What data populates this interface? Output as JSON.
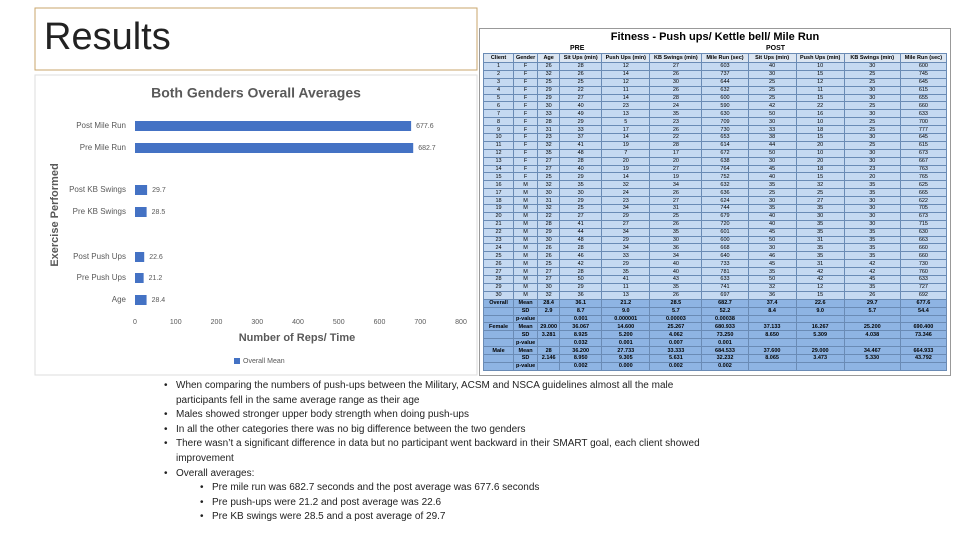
{
  "title": "Results",
  "chart_data": {
    "type": "hbar",
    "title": "Both Genders Overall Averages",
    "x_label": "Number of Reps/ Time",
    "y_label": "Exercise Performed",
    "categories": [
      "Post Mile Run",
      "Pre Mile Run",
      "Post KB Swings",
      "Pre KB Swings",
      "Post Push Ups",
      "Pre Push Ups",
      "Age"
    ],
    "series": [
      {
        "name": "Overall Mean",
        "color": "#4472c4",
        "values": [
          677.6,
          682.7,
          29.7,
          28.5,
          22.6,
          21.2,
          28.4
        ]
      }
    ],
    "xlim": [
      0,
      800
    ],
    "xticks": [
      0,
      100,
      200,
      300,
      400,
      500,
      600,
      700,
      800
    ],
    "grid": false,
    "legend": "bottom"
  },
  "table": {
    "title": "Fitness - Push ups/ Kettle bell/ Mile Run",
    "groups": [
      "PRE",
      "POST"
    ],
    "columns": [
      "Client",
      "Gender",
      "Age",
      "Sit Ups (min)",
      "Push Ups (min)",
      "KB Swings (min)",
      "Mile Run (sec)",
      "Sit Ups (min)",
      "Push Ups (min)",
      "KB Swings (min)",
      "Mile Run (sec)"
    ],
    "rows": [
      [
        "1",
        "F",
        "26",
        "28",
        "12",
        "27",
        "603",
        "40",
        "10",
        "30",
        "600"
      ],
      [
        "2",
        "F",
        "32",
        "26",
        "14",
        "26",
        "737",
        "30",
        "15",
        "25",
        "745"
      ],
      [
        "3",
        "F",
        "25",
        "25",
        "12",
        "30",
        "644",
        "25",
        "12",
        "25",
        "645"
      ],
      [
        "4",
        "F",
        "29",
        "22",
        "11",
        "26",
        "632",
        "25",
        "11",
        "30",
        "615"
      ],
      [
        "5",
        "F",
        "29",
        "27",
        "14",
        "28",
        "600",
        "25",
        "15",
        "30",
        "655"
      ],
      [
        "6",
        "F",
        "30",
        "40",
        "23",
        "24",
        "590",
        "42",
        "22",
        "25",
        "660"
      ],
      [
        "7",
        "F",
        "33",
        "49",
        "13",
        "35",
        "630",
        "50",
        "16",
        "30",
        "633"
      ],
      [
        "8",
        "F",
        "28",
        "29",
        "5",
        "23",
        "709",
        "30",
        "10",
        "25",
        "700"
      ],
      [
        "9",
        "F",
        "31",
        "33",
        "17",
        "26",
        "730",
        "33",
        "18",
        "25",
        "777"
      ],
      [
        "10",
        "F",
        "23",
        "37",
        "14",
        "22",
        "653",
        "38",
        "15",
        "30",
        "645"
      ],
      [
        "11",
        "F",
        "32",
        "41",
        "19",
        "28",
        "614",
        "44",
        "20",
        "25",
        "615"
      ],
      [
        "12",
        "F",
        "35",
        "48",
        "7",
        "17",
        "672",
        "50",
        "10",
        "30",
        "673"
      ],
      [
        "13",
        "F",
        "27",
        "28",
        "20",
        "20",
        "638",
        "30",
        "20",
        "30",
        "667"
      ],
      [
        "14",
        "F",
        "27",
        "40",
        "19",
        "27",
        "764",
        "45",
        "18",
        "23",
        "763"
      ],
      [
        "15",
        "F",
        "25",
        "29",
        "14",
        "19",
        "752",
        "40",
        "15",
        "20",
        "765"
      ],
      [
        "16",
        "M",
        "32",
        "35",
        "32",
        "34",
        "632",
        "35",
        "32",
        "35",
        "625"
      ],
      [
        "17",
        "M",
        "30",
        "30",
        "24",
        "26",
        "636",
        "25",
        "25",
        "35",
        "665"
      ],
      [
        "18",
        "M",
        "31",
        "29",
        "23",
        "27",
        "624",
        "30",
        "27",
        "30",
        "622"
      ],
      [
        "19",
        "M",
        "32",
        "25",
        "34",
        "31",
        "744",
        "35",
        "35",
        "30",
        "705"
      ],
      [
        "20",
        "M",
        "22",
        "27",
        "29",
        "25",
        "679",
        "40",
        "30",
        "30",
        "673"
      ],
      [
        "21",
        "M",
        "28",
        "41",
        "27",
        "26",
        "720",
        "40",
        "35",
        "30",
        "715"
      ],
      [
        "22",
        "M",
        "29",
        "44",
        "34",
        "35",
        "601",
        "45",
        "35",
        "35",
        "630"
      ],
      [
        "23",
        "M",
        "30",
        "48",
        "29",
        "30",
        "600",
        "50",
        "31",
        "35",
        "663"
      ],
      [
        "24",
        "M",
        "26",
        "28",
        "34",
        "36",
        "668",
        "30",
        "35",
        "35",
        "660"
      ],
      [
        "25",
        "M",
        "26",
        "46",
        "33",
        "34",
        "640",
        "46",
        "35",
        "35",
        "660"
      ],
      [
        "26",
        "M",
        "25",
        "42",
        "29",
        "40",
        "733",
        "45",
        "31",
        "42",
        "730"
      ],
      [
        "27",
        "M",
        "27",
        "28",
        "35",
        "40",
        "781",
        "35",
        "42",
        "42",
        "760"
      ],
      [
        "28",
        "M",
        "27",
        "50",
        "41",
        "43",
        "633",
        "50",
        "42",
        "45",
        "633"
      ],
      [
        "29",
        "M",
        "30",
        "29",
        "11",
        "35",
        "741",
        "32",
        "12",
        "35",
        "727"
      ],
      [
        "30",
        "M",
        "32",
        "36",
        "13",
        "26",
        "697",
        "36",
        "15",
        "26",
        "692"
      ]
    ],
    "summary": [
      [
        "Overall",
        "Mean",
        "28.4",
        "36.1",
        "21.2",
        "28.5",
        "682.7",
        "37.4",
        "22.6",
        "29.7",
        "677.6"
      ],
      [
        null,
        "SD",
        "2.9",
        "8.7",
        "9.0",
        "5.7",
        "52.2",
        "8.4",
        "9.0",
        "5.7",
        "54.4"
      ],
      [
        null,
        "p-value",
        null,
        "0.001",
        "0.000001",
        "0.00003",
        "0.00038",
        null,
        null,
        null,
        null
      ],
      [
        "Female",
        "Mean",
        "29.000",
        "36.067",
        "14.600",
        "25.267",
        "680.933",
        "37.133",
        "16.267",
        "25.200",
        "690.400"
      ],
      [
        null,
        "SD",
        "3.281",
        "8.925",
        "5.200",
        "4.062",
        "73.250",
        "8.650",
        "5.309",
        "4.038",
        "73.346"
      ],
      [
        null,
        "p-value",
        null,
        "0.032",
        "0.001",
        "0.007",
        "0.001",
        null,
        null,
        null,
        null
      ],
      [
        "Male",
        "Mean",
        "28",
        "36.200",
        "27.733",
        "33.333",
        "684.533",
        "37.600",
        "29.000",
        "34.467",
        "664.933"
      ],
      [
        null,
        "SD",
        "2.146",
        "8.950",
        "9.305",
        "5.631",
        "32.232",
        "8.065",
        "3.473",
        "5.330",
        "43.792"
      ],
      [
        null,
        "p-value",
        null,
        "0.002",
        "0.000",
        "0.002",
        "0.002",
        null,
        null,
        null,
        null
      ]
    ]
  },
  "bullets": [
    {
      "text": "When comparing the numbers of push-ups between the Military, ACSM and NSCA guidelines almost all the male participants fell in the same average range as their age"
    },
    {
      "text": "Males showed stronger upper body strength when doing push-ups"
    },
    {
      "text": "In all the other categories there was no big difference between the two genders"
    },
    {
      "text": "There wasn’t a significant difference in data but no participant went backward in their SMART goal, each client showed improvement"
    },
    {
      "text": "Overall averages:",
      "children": [
        "Pre mile run was 682.7 seconds and the post average was 677.6 seconds",
        "Pre push-ups were 21.2 and post average was 22.6",
        "Pre KB swings were 28.5 and a post average of 29.7"
      ]
    }
  ]
}
